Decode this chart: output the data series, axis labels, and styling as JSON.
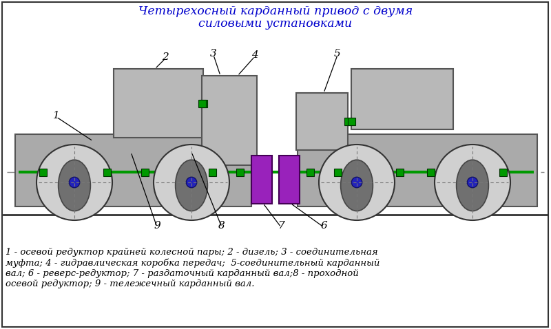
{
  "title_line1": "Четырехосный карданный привод с двумя",
  "title_line2": "силовыми установками",
  "title_color": "#0000cc",
  "title_fontsize": 12.5,
  "caption": "1 - осевой редуктор крайней колесной пары; 2 - дизель; 3 - соединительная\nмуфта; 4 - гидравлическая коробка передач;  5-соединительный карданный\nвал; 6 - реверс-редуктор; 7 - раздаточный карданный вал;8 - проходной\nосевой редуктор; 9 - тележечный карданный вал.",
  "caption_fontsize": 9.5,
  "bg_color": "#ffffff",
  "body_color": "#b8b8b8",
  "wheel_outer_color": "#d0d0d0",
  "wheel_inner_color": "#888888",
  "hub_color": "#2222bb",
  "green_color": "#009900",
  "purple_color": "#9922bb",
  "rail_color": "#333333",
  "frame_color": "#aaaaaa",
  "label_color": "#000000",
  "edge_color": "#555555"
}
